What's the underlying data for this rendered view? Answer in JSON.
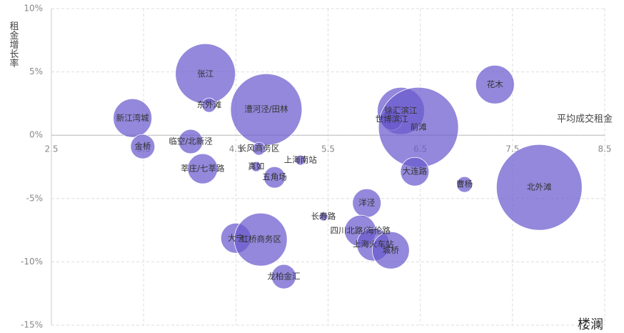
{
  "chart_data": {
    "type": "bubble",
    "x_label": "平均成交租金",
    "y_label": "租金增长率",
    "color": "#6a5acd",
    "labels": [
      "张江",
      "东外滩",
      "新江湾城",
      "金桥",
      "临空/北新泾",
      "莘庄/七莘路",
      "漕河泾/田林",
      "长风商务区",
      "真如",
      "上海南站",
      "五角场",
      "徐汇滨江",
      "世博滨江",
      "前滩",
      "大连路",
      "花木",
      "北外滩",
      "曹杨",
      "洋泾",
      "长寿路",
      "四川北路/海伦路",
      "上海火车站",
      "城桥",
      "大宁",
      "虹桥商务区",
      "龙柏金汇"
    ],
    "x": [
      4.17,
      4.21,
      3.38,
      3.49,
      4.01,
      4.14,
      4.83,
      4.75,
      4.72,
      5.2,
      4.92,
      6.29,
      6.19,
      6.48,
      6.44,
      7.31,
      7.79,
      6.98,
      5.92,
      5.45,
      5.85,
      5.99,
      6.18,
      4.5,
      4.77,
      5.02
    ],
    "y": [
      4.85,
      2.37,
      1.35,
      -0.9,
      -0.5,
      -2.65,
      2.03,
      -1.07,
      -2.48,
      -1.97,
      -3.33,
      1.92,
      1.24,
      0.62,
      -2.88,
      4.0,
      -4.12,
      -3.89,
      -5.36,
      -6.43,
      -7.56,
      -8.63,
      -9.09,
      -8.13,
      -8.24,
      -11.17
    ],
    "size": [
      42,
      10,
      27,
      17,
      17,
      21,
      50,
      9,
      7,
      7,
      15,
      33,
      15,
      56,
      20,
      27,
      60,
      11,
      20,
      6,
      22,
      23,
      26,
      21,
      37,
      17
    ],
    "xlim": [
      2.5,
      8.5
    ],
    "xticks": [
      2.5,
      3.5,
      4.5,
      5.5,
      6.5,
      7.5,
      8.5
    ],
    "ylim": [
      -15,
      10
    ],
    "yticks": [
      {
        "value": -15,
        "label": "-15%"
      },
      {
        "value": -10,
        "label": "-10%"
      },
      {
        "value": -5,
        "label": "-5%"
      },
      {
        "value": 0,
        "label": "0%"
      },
      {
        "value": 5,
        "label": "5%"
      },
      {
        "value": 10,
        "label": "10%"
      }
    ],
    "grid": true,
    "watermark": "楼澜"
  }
}
